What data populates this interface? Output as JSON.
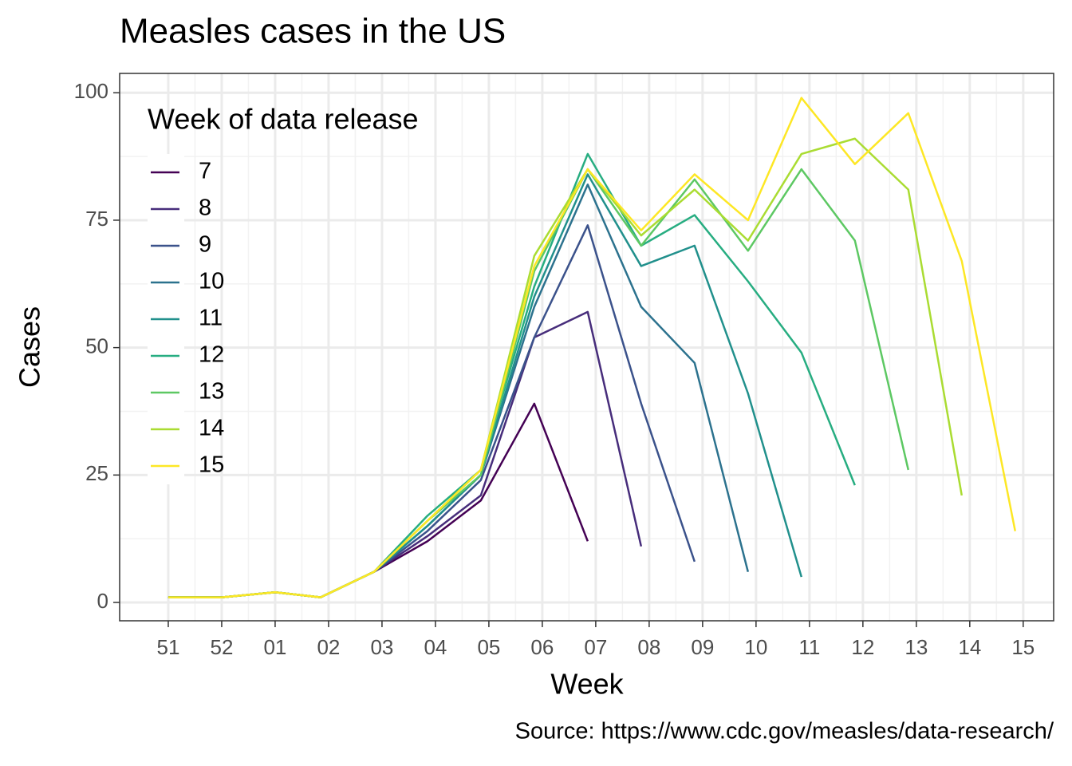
{
  "chart_data": {
    "type": "line",
    "title": "Measles cases in the US",
    "x_label": "Week",
    "y_label": "Cases",
    "caption": "Source: https://www.cdc.gov/measles/data-research/",
    "legend_title": "Week of data release",
    "legend_position": "top-left",
    "grid": true,
    "x": [
      0,
      1,
      2,
      2.85,
      3.85,
      4.85,
      5.85,
      6.85,
      7.85,
      8.85,
      9.85,
      10.85,
      11.85,
      12.85,
      13.85,
      14.85,
      15.85
    ],
    "xlim": [
      -0.91,
      16.57
    ],
    "xticks": [
      {
        "value": 0,
        "label": "51"
      },
      {
        "value": 1,
        "label": "52"
      },
      {
        "value": 2,
        "label": "01"
      },
      {
        "value": 3,
        "label": "02"
      },
      {
        "value": 4,
        "label": "03"
      },
      {
        "value": 5,
        "label": "04"
      },
      {
        "value": 6,
        "label": "05"
      },
      {
        "value": 7,
        "label": "06"
      },
      {
        "value": 8,
        "label": "07"
      },
      {
        "value": 9,
        "label": "08"
      },
      {
        "value": 10,
        "label": "09"
      },
      {
        "value": 11,
        "label": "10"
      },
      {
        "value": 12,
        "label": "11"
      },
      {
        "value": 13,
        "label": "12"
      },
      {
        "value": 14,
        "label": "13"
      },
      {
        "value": 15,
        "label": "14"
      },
      {
        "value": 16,
        "label": "15"
      }
    ],
    "ylim": [
      -3.6,
      103.8
    ],
    "yticks": [
      0,
      25,
      50,
      75,
      100
    ],
    "series": [
      {
        "name": "7",
        "color": "#440154",
        "values": [
          1,
          1,
          2,
          1,
          6,
          12,
          20,
          39,
          12,
          null,
          null,
          null,
          null,
          null,
          null,
          null,
          null
        ]
      },
      {
        "name": "8",
        "color": "#472d7b",
        "values": [
          1,
          1,
          2,
          1,
          6,
          13,
          21,
          52,
          57,
          11,
          null,
          null,
          null,
          null,
          null,
          null,
          null
        ]
      },
      {
        "name": "9",
        "color": "#3b528b",
        "values": [
          1,
          1,
          2,
          1,
          6,
          14,
          24,
          52,
          74,
          39,
          8,
          null,
          null,
          null,
          null,
          null,
          null
        ]
      },
      {
        "name": "10",
        "color": "#2c728e",
        "values": [
          1,
          1,
          2,
          1,
          6,
          15,
          25,
          58,
          82,
          58,
          47,
          6,
          null,
          null,
          null,
          null,
          null
        ]
      },
      {
        "name": "11",
        "color": "#21908c",
        "values": [
          1,
          1,
          2,
          1,
          6,
          15,
          25,
          60,
          84,
          66,
          70,
          41,
          5,
          null,
          null,
          null,
          null
        ]
      },
      {
        "name": "12",
        "color": "#27ad81",
        "values": [
          1,
          1,
          2,
          1,
          6,
          17,
          26,
          62,
          88,
          70,
          76,
          63,
          49,
          23,
          null,
          null,
          null
        ]
      },
      {
        "name": "13",
        "color": "#5dc863",
        "values": [
          1,
          1,
          2,
          1,
          6,
          16,
          25,
          65,
          85,
          70,
          83,
          69,
          85,
          71,
          26,
          null,
          null
        ]
      },
      {
        "name": "14",
        "color": "#aadc32",
        "values": [
          1,
          1,
          2,
          1,
          6,
          16,
          26,
          68,
          85,
          72,
          81,
          71,
          88,
          91,
          81,
          21,
          null
        ]
      },
      {
        "name": "15",
        "color": "#fde725",
        "values": [
          1,
          1,
          2,
          1,
          6,
          16,
          26,
          66,
          85,
          73,
          84,
          75,
          99,
          86,
          96,
          67,
          14
        ]
      }
    ]
  }
}
